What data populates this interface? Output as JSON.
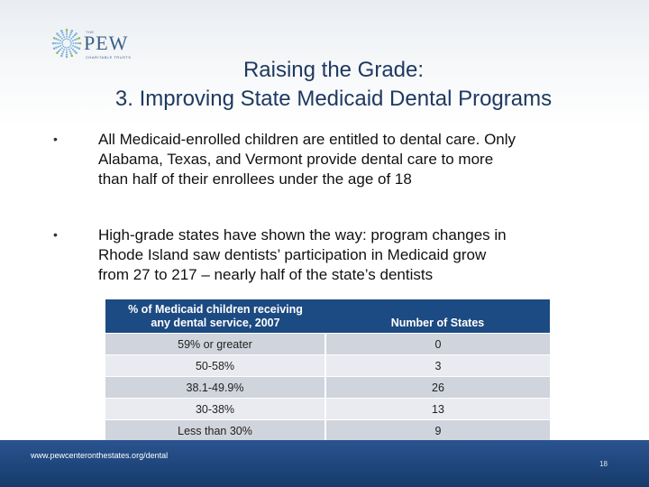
{
  "logo": {
    "the": "THE",
    "name": "PEW",
    "sub": "CHARITABLE TRUSTS"
  },
  "title": {
    "line1": "Raising the Grade:",
    "line2": "3. Improving State Medicaid Dental Programs"
  },
  "bullets": [
    {
      "marker": "•",
      "lines": [
        "All Medicaid-enrolled children are entitled to dental care. Only",
        "Alabama, Texas, and Vermont provide dental care to more",
        "than half of  their enrollees under the age of 18"
      ]
    },
    {
      "marker": "•",
      "lines": [
        "High-grade states have shown the way: program changes in",
        "Rhode Island saw dentists’ participation in Medicaid grow",
        "from 27 to 217 – nearly half of the state’s dentists"
      ]
    }
  ],
  "table": {
    "headers": [
      {
        "line1": "% of Medicaid children receiving",
        "line2": "any dental service, 2007"
      },
      {
        "line1": "Number of States"
      }
    ],
    "rows": [
      {
        "range": "59% or greater",
        "count": "0"
      },
      {
        "range": "50-58%",
        "count": "3"
      },
      {
        "range": "38.1-49.9%",
        "count": "26"
      },
      {
        "range": "30-38%",
        "count": "13"
      },
      {
        "range": "Less than 30%",
        "count": "9"
      }
    ]
  },
  "footer": {
    "url": "www.pewcenteronthestates.org/dental",
    "page": "18"
  },
  "colors": {
    "title": "#1f3960",
    "table_header": "#1c4a82",
    "row_dark": "#d0d4dc",
    "row_light": "#e9ebf0",
    "footer": "#1e4578",
    "logo_dots": "#7fb2d8",
    "logo_green": "#9ab83c"
  }
}
